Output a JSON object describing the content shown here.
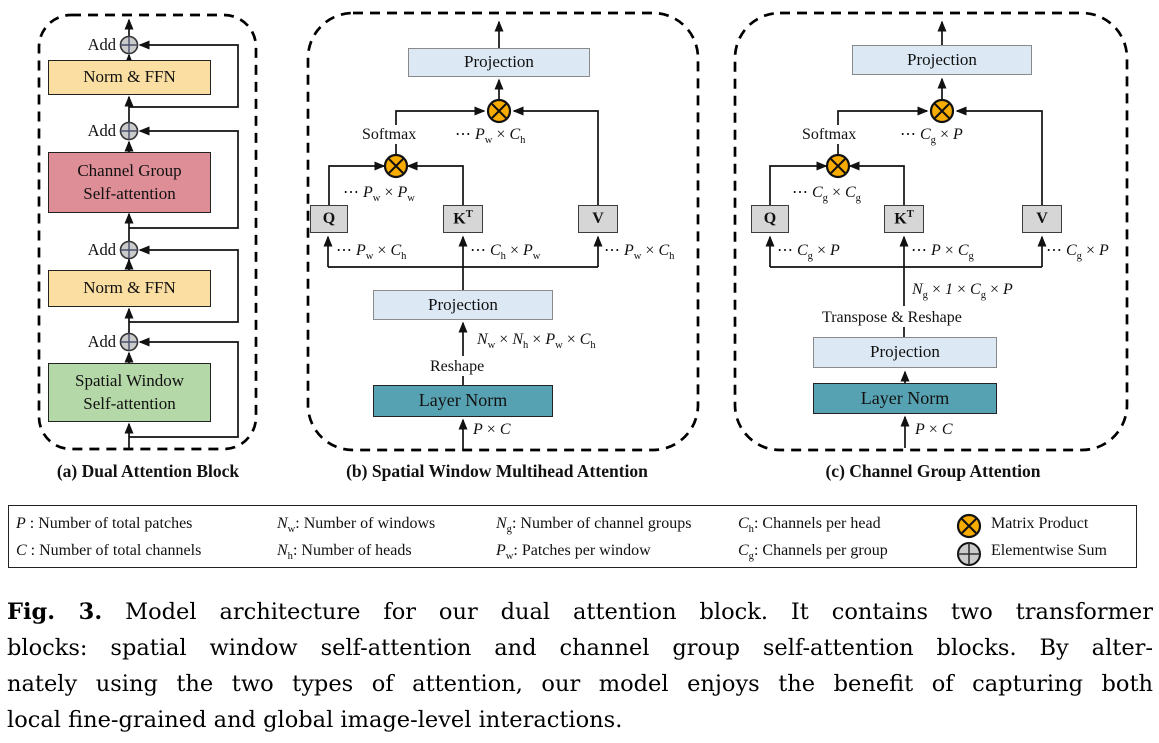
{
  "figure": {
    "panel_a": {
      "caption": "(a) Dual Attention Block",
      "add_label": "Add",
      "norm_ffn_top": "Norm & FFN",
      "channel_group": "Channel Group Self-attention",
      "norm_ffn_bottom": "Norm & FFN",
      "spatial_window": "Spatial Window Self-attention"
    },
    "panel_b": {
      "caption": "(b) Spatial Window Multihead Attention",
      "projection_top": "Projection",
      "projection_low": "Projection",
      "layer_norm": "Layer Norm",
      "softmax": "Softmax",
      "reshape": "Reshape",
      "q": "Q",
      "k": "K^T^",
      "v": "V",
      "mm_top_dim": "⋯ *P*~w~ × *C*~h~",
      "mm_low_dim": "⋯ *P*~w~ × *P*~w~",
      "q_dim": "⋯ *P*~w~ × *C*~h~",
      "k_dim": "⋯ *C*~h~ × *P*~w~",
      "v_dim": "⋯ *P*~w~ × *C*~h~",
      "reshape_dim": "*N*~w~ × *N*~h~ × *P*~w~ × *C*~h~",
      "input_dim": "*P* × *C*"
    },
    "panel_c": {
      "caption": "(c) Channel Group Attention",
      "projection_top": "Projection",
      "projection_low": "Projection",
      "layer_norm": "Layer Norm",
      "softmax": "Softmax",
      "transpose_reshape": "Transpose & Reshape",
      "q": "Q",
      "k": "K^T^",
      "v": "V",
      "mm_top_dim": "⋯ *C*~g~ × *P*",
      "mm_low_dim": "⋯ *C*~g~ × *C*~g~",
      "q_dim": "⋯ *C*~g~ × *P*",
      "k_dim": "⋯ *P* × *C*~g~",
      "v_dim": "⋯ *C*~g~ × *P*",
      "reshape_dim": "*N*~g~ × *1* × *C*~g~ × *P*",
      "input_dim": "*P* × *C*"
    }
  },
  "legend": {
    "entries": [
      "*P* : Number of total patches",
      "*C* : Number of total channels",
      "*N*~w~: Number of windows",
      "*N*~h~: Number of heads",
      "*N*~g~: Number of channel groups",
      "*P*~w~: Patches per window",
      "*C*~h~: Channels per head",
      "*C*~g~: Channels per group"
    ],
    "matrix_product": "Matrix Product",
    "elementwise_sum": "Elementwise Sum"
  },
  "caption": {
    "fig_label": "Fig. 3.",
    "lines": [
      "Model architecture for our dual attention block. It contains two transformer",
      "blocks: spatial window self-attention and channel group self-attention blocks. By alter-",
      "nately using the two types of attention, our model enjoys the benefit of capturing both",
      "local fine-grained and global image-level interactions."
    ]
  },
  "colors": {
    "norm_ffn": "#FBDFA2",
    "channel_group_attn": "#DD8E97",
    "spatial_window_attn": "#B5D8A8",
    "projection": "#DCE9F5",
    "layer_norm": "#57A2B2",
    "qkv_box": "#D6D6D6",
    "matrix_product_icon": "#F8AC00",
    "elementwise_sum_icon": "#CBCBCB"
  }
}
